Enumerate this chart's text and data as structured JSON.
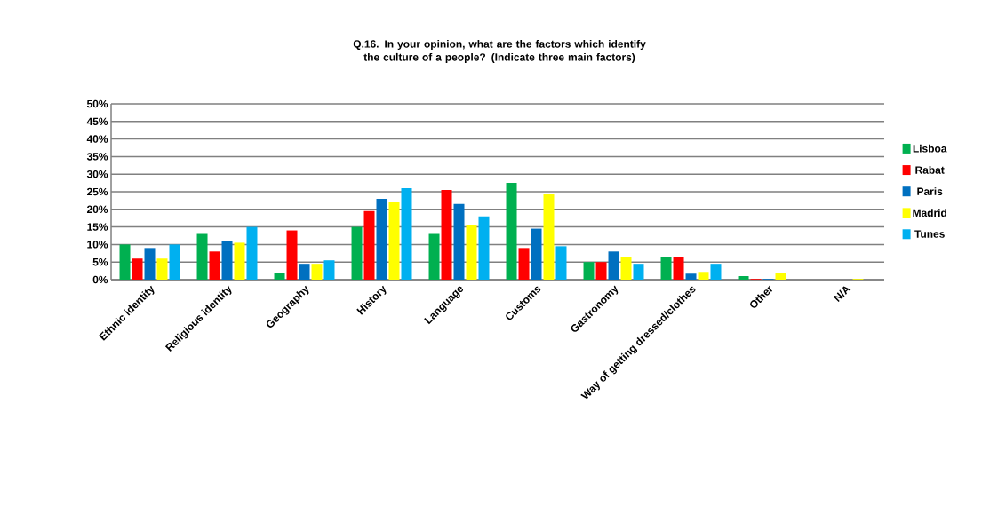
{
  "chart_data": {
    "type": "bar",
    "title": "Q.16. In your opinion, what are the factors which identify the culture of a people? (Indicate three main factors)",
    "categories": [
      "Ethnic identity",
      "Religious identity",
      "Geography",
      "History",
      "Language",
      "Customs",
      "Gastronomy",
      "Way of getting dressed/clothes",
      "Other",
      "N/A"
    ],
    "series": [
      {
        "name": "Lisboa",
        "color": "#00b050",
        "values": [
          10,
          13,
          2,
          15,
          13,
          27.5,
          5,
          6.5,
          1,
          0
        ]
      },
      {
        "name": "Rabat",
        "color": "#ff0000",
        "values": [
          6,
          8,
          14,
          19.5,
          25.5,
          9,
          5,
          6.5,
          0.2,
          0
        ]
      },
      {
        "name": "Paris",
        "color": "#0070c0",
        "values": [
          9,
          11,
          4.5,
          23,
          21.5,
          14.5,
          8,
          1.7,
          0.2,
          0
        ]
      },
      {
        "name": "Madrid",
        "color": "#ffff00",
        "values": [
          6,
          10.5,
          4.5,
          22,
          15.5,
          24.5,
          6.5,
          2.2,
          1.8,
          0.2
        ]
      },
      {
        "name": "Tunes",
        "color": "#00b0f0",
        "values": [
          10,
          15,
          5.5,
          26,
          18,
          9.5,
          4.5,
          4.5,
          0,
          0
        ]
      }
    ],
    "ylim": [
      0,
      50
    ],
    "yticks": [
      {
        "value": 0,
        "label": "0%"
      },
      {
        "value": 5,
        "label": "5%"
      },
      {
        "value": 10,
        "label": "10%"
      },
      {
        "value": 15,
        "label": "15%"
      },
      {
        "value": 20,
        "label": "20%"
      },
      {
        "value": 25,
        "label": "25%"
      },
      {
        "value": 30,
        "label": "30%"
      },
      {
        "value": 35,
        "label": "35%"
      },
      {
        "value": 40,
        "label": "40%"
      },
      {
        "value": 45,
        "label": "45%"
      },
      {
        "value": 50,
        "label": "50%"
      }
    ],
    "grid": "y",
    "legend": "right"
  }
}
